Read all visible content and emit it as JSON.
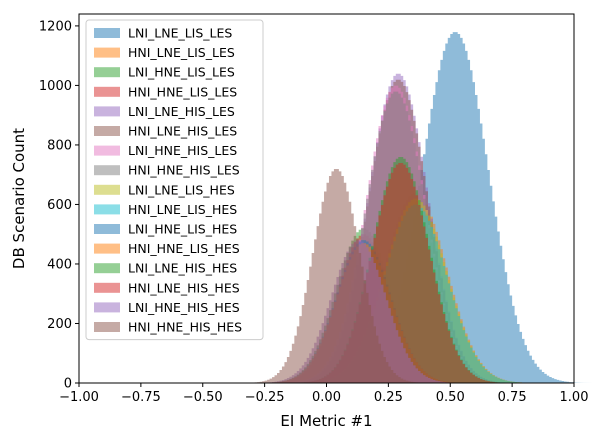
{
  "chart_data": {
    "type": "histogram",
    "xlabel": "EI Metric #1",
    "ylabel": "DB Scenario Count",
    "xlim": [
      -1.0,
      1.0
    ],
    "ylim": [
      0,
      1240
    ],
    "x_ticks": [
      -1.0,
      -0.75,
      -0.5,
      -0.25,
      0.0,
      0.25,
      0.5,
      0.75,
      1.0
    ],
    "x_tick_labels": [
      "−1.00",
      "−0.75",
      "−0.50",
      "−0.25",
      "0.00",
      "0.25",
      "0.50",
      "0.75",
      "1.00"
    ],
    "y_ticks": [
      0,
      200,
      400,
      600,
      800,
      1000,
      1200
    ],
    "y_tick_labels": [
      "0",
      "200",
      "400",
      "600",
      "800",
      "1000",
      "1200"
    ],
    "grid": false,
    "legend_position": "top-left",
    "bin_width": 0.01,
    "series": [
      {
        "name": "LNI_LNE_LIS_LES",
        "color": "#1f77b4",
        "mean": 0.52,
        "sd": 0.135,
        "peak": 1180
      },
      {
        "name": "HNI_LNE_LIS_LES",
        "color": "#ff7f0e",
        "mean": 0.36,
        "sd": 0.125,
        "peak": 640
      },
      {
        "name": "LNI_HNE_LIS_LES",
        "color": "#2ca02c",
        "mean": 0.15,
        "sd": 0.11,
        "peak": 520
      },
      {
        "name": "HNI_HNE_LIS_LES",
        "color": "#d62728",
        "mean": 0.15,
        "sd": 0.105,
        "peak": 500
      },
      {
        "name": "LNI_LNE_HIS_LES",
        "color": "#9467bd",
        "mean": 0.29,
        "sd": 0.12,
        "peak": 1040
      },
      {
        "name": "HNI_LNE_HIS_LES",
        "color": "#8c564b",
        "mean": 0.29,
        "sd": 0.12,
        "peak": 1020
      },
      {
        "name": "LNI_HNE_HIS_LES",
        "color": "#e377c2",
        "mean": 0.28,
        "sd": 0.12,
        "peak": 1000
      },
      {
        "name": "HNI_HNE_HIS_LES",
        "color": "#7f7f7f",
        "mean": 0.28,
        "sd": 0.12,
        "peak": 980
      },
      {
        "name": "LNI_LNE_LIS_HES",
        "color": "#bcbd22",
        "mean": 0.36,
        "sd": 0.125,
        "peak": 620
      },
      {
        "name": "HNI_LNE_LIS_HES",
        "color": "#17becf",
        "mean": 0.36,
        "sd": 0.125,
        "peak": 600
      },
      {
        "name": "LNI_HNE_LIS_HES",
        "color": "#1f77b4",
        "mean": 0.15,
        "sd": 0.11,
        "peak": 480
      },
      {
        "name": "HNI_HNE_LIS_HES",
        "color": "#ff7f0e",
        "mean": 0.15,
        "sd": 0.11,
        "peak": 470
      },
      {
        "name": "LNI_LNE_HIS_HES",
        "color": "#2ca02c",
        "mean": 0.3,
        "sd": 0.115,
        "peak": 760
      },
      {
        "name": "HNI_LNE_HIS_HES",
        "color": "#d62728",
        "mean": 0.3,
        "sd": 0.115,
        "peak": 740
      },
      {
        "name": "LNI_HNE_HIS_HES",
        "color": "#9467bd",
        "mean": 0.13,
        "sd": 0.11,
        "peak": 480
      },
      {
        "name": "HNI_HNE_HIS_HES",
        "color": "#8c564b",
        "mean": 0.04,
        "sd": 0.095,
        "peak": 720
      }
    ]
  }
}
